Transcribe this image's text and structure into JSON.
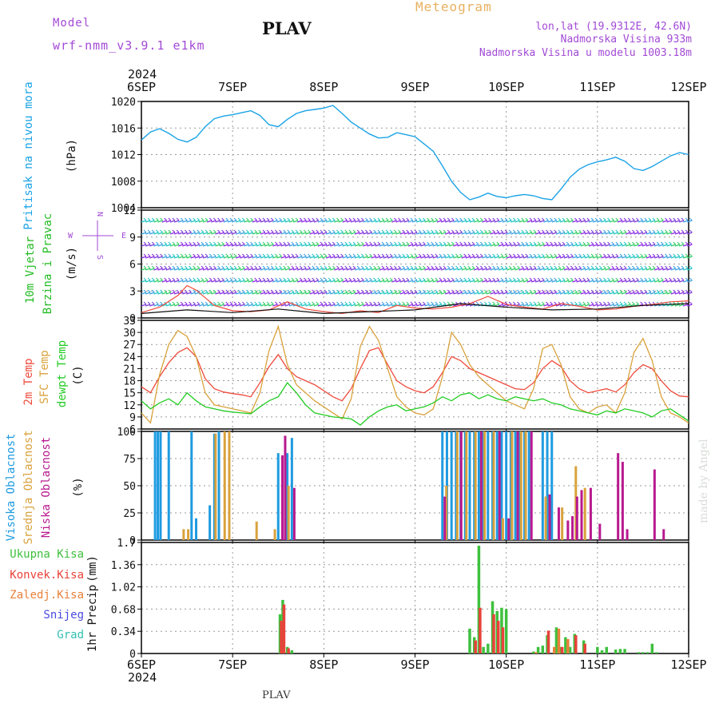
{
  "header": {
    "model_label": "Model",
    "model_name": "wrf-nmm_v3.9.1  e1km",
    "station": "PLAV",
    "meteogram_label": "Meteogram",
    "lonlat": "lon,lat (19.9312E, 42.6N)",
    "altitude": "Nadmorska Visina 933m",
    "model_altitude": "Nadmorska Visina u modelu 1003.18m",
    "footer_station": "PLAV",
    "credit": "made by Angel"
  },
  "colors": {
    "pressure": "#1aa3e6",
    "temp2m": "#ef4a3c",
    "sfc": "#d9a23c",
    "dewpt": "#22cc22",
    "high_cloud": "#1f9be0",
    "mid_cloud": "#d9a23c",
    "low_cloud": "#b8198f",
    "total_precip": "#3ec03e",
    "conv_precip": "#e8423a",
    "frozen_precip": "#e8803a",
    "snow": "#4a4ae0",
    "hail": "#33c0b0",
    "header_purple": "#a24ad6",
    "meteogram_orange": "#e8b060"
  },
  "chart_data": [
    {
      "type": "line",
      "panel": "pressure",
      "ylabel_left": "Pritisak na nivou mora",
      "unit": "(hPa)",
      "xlabels": [
        "6SEP",
        "7SEP",
        "8SEP",
        "9SEP",
        "10SEP",
        "11SEP",
        "12SEP"
      ],
      "x_year": "2024",
      "ylim": [
        1004,
        1020
      ],
      "yticks": [
        "1004",
        "1008",
        "1012",
        "1016",
        "1020"
      ],
      "grid": true,
      "series": [
        {
          "x": [
            0,
            0.1,
            0.2,
            0.3,
            0.4,
            0.5,
            0.6,
            0.7,
            0.8,
            0.9,
            1.0,
            1.1,
            1.2,
            1.3,
            1.4,
            1.5,
            1.6,
            1.7,
            1.8,
            1.9,
            2.0,
            2.1,
            2.2,
            2.3,
            2.4,
            2.5,
            2.6,
            2.7,
            2.8,
            2.9,
            3.0,
            3.1,
            3.2,
            3.3,
            3.4,
            3.5,
            3.6,
            3.7,
            3.8,
            3.9,
            4.0,
            4.1,
            4.2,
            4.3,
            4.4,
            4.5,
            4.6,
            4.7,
            4.8,
            4.9,
            5.0,
            5.1,
            5.2,
            5.3,
            5.4,
            5.5,
            5.6,
            5.7,
            5.8,
            5.9,
            6.0
          ],
          "values": [
            1014.2,
            1015.4,
            1015.9,
            1015.2,
            1014.3,
            1013.9,
            1014.6,
            1016.2,
            1017.4,
            1017.8,
            1018.0,
            1018.3,
            1018.6,
            1017.9,
            1016.5,
            1016.2,
            1017.3,
            1018.2,
            1018.6,
            1018.8,
            1019.0,
            1019.4,
            1018.2,
            1016.9,
            1016.0,
            1015.1,
            1014.5,
            1014.6,
            1015.3,
            1015.0,
            1014.7,
            1013.6,
            1012.5,
            1010.3,
            1008.0,
            1006.3,
            1005.2,
            1005.6,
            1006.2,
            1005.7,
            1005.5,
            1005.8,
            1006.0,
            1005.8,
            1005.4,
            1005.2,
            1006.8,
            1008.6,
            1009.8,
            1010.5,
            1010.9,
            1011.2,
            1011.6,
            1011.0,
            1009.9,
            1009.6,
            1010.2,
            1011.0,
            1011.8,
            1012.3,
            1012.0
          ],
          "color": "#1aa3e6"
        }
      ]
    },
    {
      "type": "line",
      "panel": "wind",
      "ylabel_left": [
        "10m Vjetar",
        "Brzina i Pravac"
      ],
      "unit": "(m/s)",
      "ylim": [
        0,
        12
      ],
      "yticks": [
        "0",
        "3",
        "6",
        "9",
        "12"
      ],
      "compass": [
        "N",
        "W",
        "E",
        "S"
      ],
      "grid": true,
      "series": [
        {
          "x": [
            0,
            0.2,
            0.4,
            0.5,
            0.6,
            0.8,
            1.0,
            1.2,
            1.4,
            1.6,
            1.8,
            2.0,
            2.2,
            2.4,
            2.6,
            2.8,
            3.0,
            3.2,
            3.4,
            3.6,
            3.8,
            4.0,
            4.2,
            4.4,
            4.6,
            4.8,
            5.0,
            5.2,
            5.4,
            5.6,
            5.8,
            6.0
          ],
          "values": [
            0.6,
            1.2,
            2.5,
            3.6,
            3.1,
            1.4,
            0.8,
            0.7,
            0.9,
            1.8,
            1.0,
            0.7,
            0.5,
            0.8,
            0.6,
            1.4,
            1.1,
            1.0,
            1.2,
            1.6,
            2.4,
            1.5,
            1.2,
            1.0,
            1.6,
            1.3,
            0.9,
            1.0,
            1.3,
            1.5,
            1.8,
            1.9
          ],
          "color": "#ef4a3c"
        },
        {
          "x": [
            0,
            0.5,
            1.0,
            1.5,
            2.0,
            2.5,
            3.0,
            3.5,
            4.0,
            4.5,
            5.0,
            5.5,
            6.0
          ],
          "values": [
            0.5,
            0.9,
            0.6,
            1.0,
            0.5,
            0.7,
            0.9,
            1.6,
            1.2,
            0.9,
            1.0,
            1.4,
            1.6
          ],
          "color": "#111111"
        }
      ]
    },
    {
      "type": "line",
      "panel": "temperature",
      "ylabel_left": [
        "2m Temp",
        "SFC Temp",
        "dewpt Temp"
      ],
      "unit": "(C)",
      "ylim": [
        6,
        33
      ],
      "yticks": [
        "6",
        "9",
        "12",
        "15",
        "18",
        "21",
        "24",
        "27",
        "30",
        "33"
      ],
      "grid": true,
      "series": [
        {
          "name": "2m Temp",
          "x": [
            0,
            0.1,
            0.2,
            0.3,
            0.4,
            0.5,
            0.6,
            0.7,
            0.8,
            0.9,
            1.0,
            1.1,
            1.2,
            1.3,
            1.4,
            1.5,
            1.6,
            1.7,
            1.8,
            1.9,
            2.0,
            2.1,
            2.2,
            2.3,
            2.4,
            2.5,
            2.6,
            2.7,
            2.8,
            2.9,
            3.0,
            3.1,
            3.2,
            3.3,
            3.4,
            3.5,
            3.6,
            3.7,
            3.8,
            3.9,
            4.0,
            4.1,
            4.2,
            4.3,
            4.4,
            4.5,
            4.6,
            4.7,
            4.8,
            4.9,
            5.0,
            5.1,
            5.2,
            5.3,
            5.4,
            5.5,
            5.6,
            5.7,
            5.8,
            5.9,
            6.0
          ],
          "values": [
            16.5,
            15.0,
            19.0,
            22.5,
            25.0,
            26.2,
            24.0,
            18.5,
            16.0,
            15.2,
            14.8,
            14.5,
            14.0,
            17.5,
            21.5,
            24.5,
            21.0,
            19.0,
            18.0,
            17.0,
            15.5,
            14.0,
            13.0,
            16.0,
            21.0,
            25.5,
            26.2,
            22.0,
            18.0,
            16.5,
            15.5,
            15.0,
            16.5,
            20.0,
            24.0,
            23.0,
            21.0,
            20.0,
            19.0,
            18.0,
            17.0,
            16.0,
            15.8,
            17.5,
            21.0,
            23.0,
            21.5,
            18.0,
            16.0,
            15.0,
            15.5,
            16.0,
            15.2,
            17.0,
            20.0,
            22.0,
            21.0,
            18.0,
            15.5,
            14.2,
            14.0
          ],
          "color": "#ef4a3c"
        },
        {
          "name": "SFC Temp",
          "x": [
            0,
            0.1,
            0.2,
            0.3,
            0.4,
            0.5,
            0.6,
            0.7,
            0.8,
            0.9,
            1.0,
            1.1,
            1.2,
            1.3,
            1.4,
            1.5,
            1.6,
            1.7,
            1.8,
            1.9,
            2.0,
            2.1,
            2.2,
            2.3,
            2.4,
            2.5,
            2.6,
            2.7,
            2.8,
            2.9,
            3.0,
            3.1,
            3.2,
            3.3,
            3.4,
            3.5,
            3.6,
            3.7,
            3.8,
            3.9,
            4.0,
            4.1,
            4.2,
            4.3,
            4.4,
            4.5,
            4.6,
            4.7,
            4.8,
            4.9,
            5.0,
            5.1,
            5.2,
            5.3,
            5.4,
            5.5,
            5.6,
            5.7,
            5.8,
            5.9,
            6.0
          ],
          "values": [
            10.0,
            7.5,
            19.5,
            27.0,
            30.5,
            29.0,
            24.0,
            15.0,
            12.0,
            11.5,
            11.0,
            10.5,
            10.0,
            15.0,
            25.5,
            31.5,
            22.0,
            17.0,
            15.0,
            13.0,
            11.5,
            10.0,
            8.5,
            13.5,
            26.5,
            31.5,
            28.0,
            21.0,
            14.0,
            11.5,
            10.0,
            9.5,
            11.0,
            19.0,
            30.0,
            27.0,
            22.0,
            19.0,
            17.0,
            15.0,
            13.0,
            12.0,
            11.0,
            16.0,
            26.0,
            27.0,
            22.0,
            14.0,
            11.0,
            10.0,
            11.5,
            12.0,
            10.0,
            15.0,
            25.0,
            28.5,
            23.0,
            14.0,
            10.0,
            9.0,
            7.5
          ],
          "color": "#d9a23c"
        },
        {
          "name": "dewpt Temp",
          "x": [
            0,
            0.1,
            0.2,
            0.3,
            0.4,
            0.5,
            0.6,
            0.7,
            0.8,
            0.9,
            1.0,
            1.1,
            1.2,
            1.3,
            1.4,
            1.5,
            1.6,
            1.7,
            1.8,
            1.9,
            2.0,
            2.1,
            2.2,
            2.3,
            2.4,
            2.5,
            2.6,
            2.7,
            2.8,
            2.9,
            3.0,
            3.1,
            3.2,
            3.3,
            3.4,
            3.5,
            3.6,
            3.7,
            3.8,
            3.9,
            4.0,
            4.1,
            4.2,
            4.3,
            4.4,
            4.5,
            4.6,
            4.7,
            4.8,
            4.9,
            5.0,
            5.1,
            5.2,
            5.3,
            5.4,
            5.5,
            5.6,
            5.7,
            5.8,
            5.9,
            6.0
          ],
          "values": [
            13.0,
            11.0,
            12.5,
            13.5,
            12.0,
            15.0,
            13.0,
            11.5,
            11.0,
            10.5,
            10.2,
            10.0,
            9.8,
            11.5,
            13.0,
            14.0,
            17.5,
            15.0,
            12.0,
            10.0,
            9.5,
            9.0,
            8.8,
            8.5,
            7.0,
            9.0,
            10.5,
            11.5,
            12.0,
            10.5,
            11.0,
            11.5,
            12.5,
            14.0,
            13.0,
            14.5,
            15.0,
            13.5,
            14.5,
            13.5,
            13.0,
            14.0,
            13.5,
            13.0,
            13.5,
            12.5,
            12.0,
            11.0,
            10.5,
            10.0,
            9.5,
            10.5,
            10.0,
            11.0,
            10.5,
            10.0,
            9.0,
            10.5,
            11.0,
            9.5,
            8.0
          ],
          "color": "#22cc22"
        }
      ]
    },
    {
      "type": "bar",
      "panel": "clouds",
      "ylabel_left": [
        "Visoka Oblacnost",
        "Srednja Oblacnost",
        "Niska Oblacnost"
      ],
      "unit": "(%)",
      "ylim": [
        0,
        100
      ],
      "yticks": [
        "0",
        "25",
        "50",
        "75",
        "100"
      ],
      "grid": true,
      "series": [
        {
          "name": "Visoka Oblacnost",
          "x": [
            0.15,
            0.18,
            0.21,
            0.3,
            0.55,
            0.6,
            0.75,
            0.8,
            0.85,
            1.5,
            1.6,
            1.65,
            3.3,
            3.35,
            3.4,
            3.45,
            3.5,
            3.55,
            3.6,
            3.65,
            3.7,
            3.75,
            3.8,
            3.85,
            3.9,
            3.95,
            4.0,
            4.05,
            4.1,
            4.15,
            4.2,
            4.25,
            4.4,
            4.45,
            4.5
          ],
          "values": [
            100,
            100,
            100,
            100,
            100,
            20,
            32,
            98,
            100,
            80,
            80,
            94,
            100,
            100,
            100,
            100,
            100,
            100,
            100,
            100,
            100,
            100,
            100,
            100,
            100,
            100,
            100,
            100,
            100,
            100,
            100,
            100,
            100,
            100,
            100
          ],
          "color": "#1f9be0"
        },
        {
          "name": "Srednja Oblacnost",
          "x": [
            0.45,
            0.5,
            0.8,
            0.9,
            0.95,
            1.25,
            1.45,
            1.6,
            3.33,
            3.45,
            3.55,
            3.65,
            3.75,
            3.85,
            3.95,
            4.05,
            4.15,
            4.2,
            4.42,
            4.6,
            4.75,
            4.85
          ],
          "values": [
            10,
            10,
            98,
            100,
            100,
            17,
            10,
            50,
            50,
            100,
            100,
            100,
            100,
            100,
            20,
            100,
            100,
            100,
            40,
            30,
            68,
            48
          ],
          "color": "#d9a23c"
        },
        {
          "name": "Niska Oblacnost",
          "x": [
            1.52,
            1.55,
            1.65,
            3.3,
            3.48,
            3.7,
            3.9,
            4.0,
            4.1,
            4.25,
            4.45,
            4.55,
            4.65,
            4.7,
            4.75,
            4.8,
            4.9,
            5.0,
            5.2,
            5.25,
            5.3,
            5.6,
            5.7
          ],
          "values": [
            78,
            96,
            48,
            40,
            100,
            100,
            100,
            20,
            100,
            100,
            42,
            30,
            18,
            22,
            40,
            46,
            48,
            15,
            80,
            72,
            10,
            65,
            10
          ],
          "color": "#b8198f"
        }
      ]
    },
    {
      "type": "bar",
      "panel": "precip",
      "ylabel_left": "1hr Precip",
      "unit": "(mm)",
      "legend": [
        "Ukupna  Kisa",
        "Konvek.Kisa",
        "Zaledj.Kisa",
        "Snijeg",
        "Grad"
      ],
      "ylim": [
        0,
        1.7
      ],
      "yticks": [
        "0",
        "0.34",
        "0.68",
        "1.02",
        "1.36",
        "1.7"
      ],
      "grid": true,
      "series": [
        {
          "name": "Ukupna  Kisa",
          "x": [
            1.52,
            1.55,
            1.6,
            1.65,
            3.6,
            3.65,
            3.7,
            3.75,
            3.8,
            3.85,
            3.9,
            3.95,
            4.0,
            4.3,
            4.35,
            4.4,
            4.45,
            4.55,
            4.6,
            4.65,
            4.7,
            4.75,
            4.85,
            5.0,
            5.05,
            5.1,
            5.2,
            5.25,
            5.3,
            5.45,
            5.5,
            5.55,
            5.6,
            5.65
          ],
          "values": [
            0.6,
            0.82,
            0.1,
            0.05,
            0.38,
            0.25,
            1.65,
            0.1,
            0.15,
            0.8,
            0.65,
            0.7,
            0.68,
            0.03,
            0.1,
            0.12,
            0.28,
            0.4,
            0.1,
            0.25,
            0.1,
            0.3,
            0.2,
            0.1,
            0.05,
            0.1,
            0.06,
            0.07,
            0.07,
            0.02,
            0.02,
            0.02,
            0.15,
            0.02
          ],
          "color": "#3ec03e"
        },
        {
          "name": "Konvek.Kisa",
          "x": [
            1.52,
            1.55,
            1.6,
            3.65,
            3.7,
            3.85,
            3.9,
            3.95,
            4.45,
            4.6,
            4.75,
            4.85
          ],
          "values": [
            0.5,
            0.75,
            0.08,
            0.2,
            0.7,
            0.6,
            0.5,
            0.4,
            0.35,
            0.1,
            0.28,
            0.15
          ],
          "color": "#e8423a"
        },
        {
          "name": "Zaledj.Kisa",
          "x": [
            4.3,
            4.5,
            4.55,
            4.65
          ],
          "values": [
            0.02,
            0.1,
            0.38,
            0.22
          ],
          "color": "#e8803a"
        }
      ]
    }
  ]
}
